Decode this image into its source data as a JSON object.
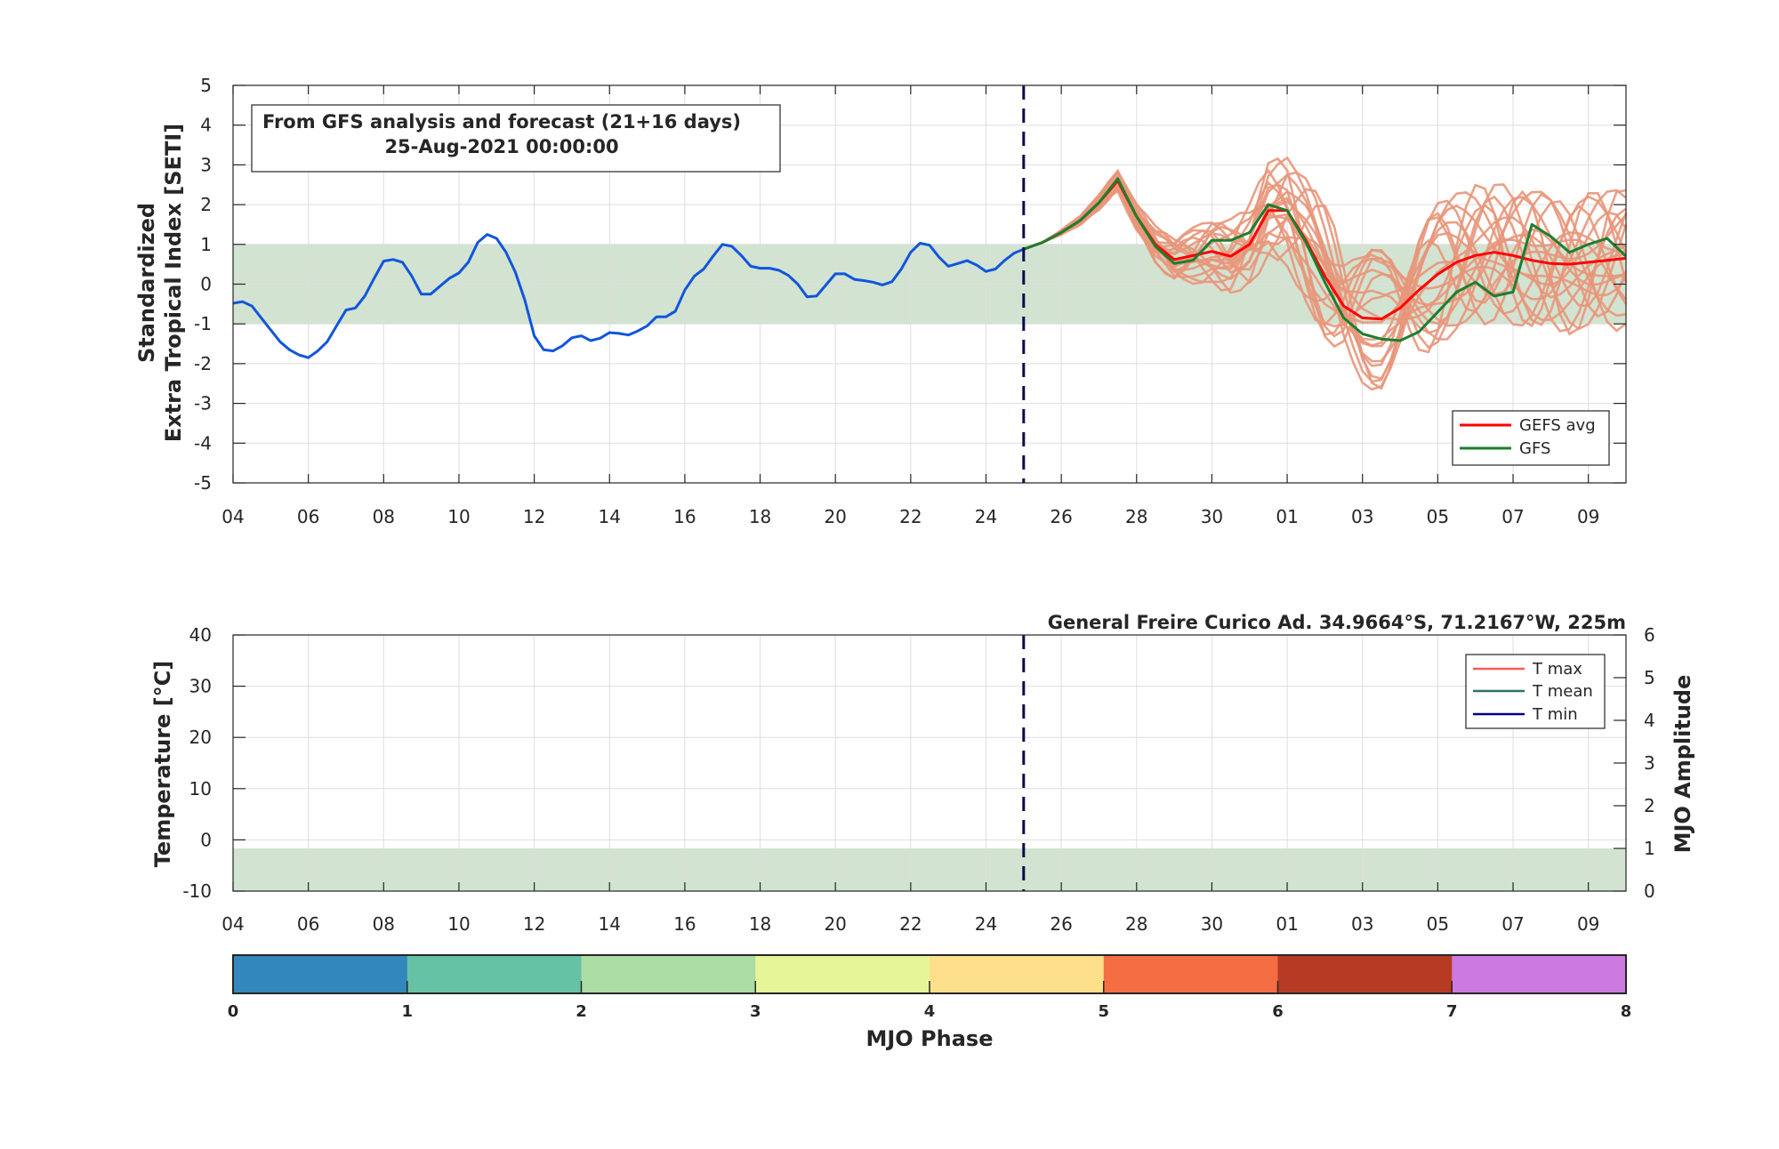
{
  "top_chart": {
    "ylabel_line1": "Standardized",
    "ylabel_line2": "Extra Tropical Index [SETI]",
    "info_line1": "From GFS analysis and forecast (21+16 days)",
    "info_line2": "25-Aug-2021 00:00:00",
    "legend": [
      {
        "label": "GEFS avg",
        "color": "#ff0000"
      },
      {
        "label": "GFS",
        "color": "#1a7f2e"
      }
    ]
  },
  "bottom_chart": {
    "title": "General Freire Curico Ad. 34.9664°S, 71.2167°W, 225m",
    "ylabel_left": "Temperature [°C]",
    "ylabel_right": "MJO Amplitude",
    "legend": [
      {
        "label": "T max",
        "color": "#ff5a5a"
      },
      {
        "label": "T mean",
        "color": "#2a6f6f"
      },
      {
        "label": "T min",
        "color": "#00007f"
      }
    ]
  },
  "colorbar": {
    "label": "MJO Phase",
    "ticks": [
      "0",
      "1",
      "2",
      "3",
      "4",
      "5",
      "6",
      "7",
      "8"
    ],
    "colors": [
      "#3288bd",
      "#66c2a5",
      "#abdda4",
      "#e6f598",
      "#fee08b",
      "#f46d43",
      "#b73b23",
      "#cc7adf"
    ]
  },
  "chart_data": [
    {
      "type": "line",
      "x_ticks": [
        "04",
        "06",
        "08",
        "10",
        "12",
        "14",
        "16",
        "18",
        "20",
        "22",
        "24",
        "26",
        "28",
        "30",
        "01",
        "03",
        "05",
        "07",
        "09"
      ],
      "y_ticks": [
        "-5",
        "-4",
        "-3",
        "-2",
        "-1",
        "0",
        "1",
        "2",
        "3",
        "4",
        "5"
      ],
      "ylim": [
        -5,
        5
      ],
      "xlim": [
        0,
        37
      ],
      "band": [
        -1,
        1
      ],
      "analysis_end_day": 21,
      "grid": true,
      "legend_position": "bottom-right",
      "series": [
        {
          "name": "",
          "color": "#1155dd",
          "x": [
            0,
            0.25,
            0.5,
            0.75,
            1,
            1.25,
            1.5,
            1.75,
            2,
            2.25,
            2.5,
            2.75,
            3,
            3.25,
            3.5,
            3.75,
            4,
            4.25,
            4.5,
            4.75,
            5,
            5.25,
            5.5,
            5.75,
            6,
            6.25,
            6.5,
            6.75,
            7,
            7.25,
            7.5,
            7.75,
            8,
            8.25,
            8.5,
            8.75,
            9,
            9.25,
            9.5,
            9.75,
            10,
            10.25,
            10.5,
            10.75,
            11,
            11.25,
            11.5,
            11.75,
            12,
            12.25,
            12.5,
            12.75,
            13,
            13.25,
            13.5,
            13.75,
            14,
            14.25,
            14.5,
            14.75,
            15,
            15.25,
            15.5,
            15.75,
            16,
            16.25,
            16.5,
            16.75,
            17,
            17.25,
            17.5,
            17.75,
            18,
            18.25,
            18.5,
            18.75,
            19,
            19.25,
            19.5,
            19.75,
            20,
            20.25,
            20.5,
            20.75,
            21
          ],
          "y": [
            -0.48,
            -0.44,
            -0.55,
            -0.85,
            -1.15,
            -1.45,
            -1.65,
            -1.78,
            -1.85,
            -1.68,
            -1.45,
            -1.05,
            -0.65,
            -0.6,
            -0.3,
            0.15,
            0.58,
            0.62,
            0.55,
            0.2,
            -0.25,
            -0.25,
            -0.05,
            0.15,
            0.28,
            0.55,
            1.05,
            1.25,
            1.15,
            0.8,
            0.3,
            -0.4,
            -1.3,
            -1.65,
            -1.68,
            -1.55,
            -1.35,
            -1.3,
            -1.42,
            -1.36,
            -1.22,
            -1.24,
            -1.28,
            -1.18,
            -1.05,
            -0.82,
            -0.82,
            -0.68,
            -0.15,
            0.2,
            0.38,
            0.7,
            1.0,
            0.95,
            0.72,
            0.45,
            0.4,
            0.4,
            0.35,
            0.22,
            0.0,
            -0.32,
            -0.3,
            -0.02,
            0.26,
            0.26,
            0.12,
            0.09,
            0.05,
            -0.02,
            0.06,
            0.38,
            0.8,
            1.03,
            0.98,
            0.68,
            0.45,
            0.52,
            0.59,
            0.48,
            0.32,
            0.38,
            0.6,
            0.78,
            0.88
          ]
        },
        {
          "name": "GEFS avg",
          "color": "#ff0000",
          "x": [
            21,
            21.5,
            22,
            22.5,
            23,
            23.5,
            24,
            24.5,
            25,
            25.5,
            26,
            26.5,
            27,
            27.5,
            28,
            28.5,
            29,
            29.5,
            30,
            30.5,
            31,
            31.5,
            32,
            32.5,
            33,
            33.5,
            34,
            34.5,
            35,
            35.5,
            36,
            36.5,
            37
          ],
          "y": [
            0.88,
            1.05,
            1.3,
            1.6,
            2.05,
            2.6,
            1.7,
            1.0,
            0.62,
            0.72,
            0.82,
            0.7,
            1.0,
            1.85,
            1.85,
            1.1,
            0.2,
            -0.55,
            -0.85,
            -0.88,
            -0.6,
            -0.15,
            0.25,
            0.55,
            0.72,
            0.8,
            0.72,
            0.6,
            0.52,
            0.5,
            0.55,
            0.6,
            0.65
          ]
        },
        {
          "name": "GFS",
          "color": "#1a7f2e",
          "x": [
            21,
            21.5,
            22,
            22.5,
            23,
            23.5,
            24,
            24.5,
            25,
            25.5,
            26,
            26.5,
            27,
            27.5,
            28,
            28.5,
            29,
            29.5,
            30,
            30.5,
            31,
            31.5,
            32,
            32.5,
            33,
            33.5,
            34,
            34.5,
            35,
            35.5,
            36,
            36.5,
            37
          ],
          "y": [
            0.88,
            1.05,
            1.3,
            1.6,
            2.05,
            2.65,
            1.7,
            0.95,
            0.52,
            0.6,
            1.1,
            1.1,
            1.3,
            2.0,
            1.85,
            1.05,
            0.05,
            -0.85,
            -1.25,
            -1.38,
            -1.42,
            -1.2,
            -0.7,
            -0.2,
            0.05,
            -0.3,
            -0.2,
            1.5,
            1.2,
            0.8,
            1.0,
            1.15,
            0.7
          ]
        }
      ]
    },
    {
      "type": "line",
      "x_ticks": [
        "04",
        "06",
        "08",
        "10",
        "12",
        "14",
        "16",
        "18",
        "20",
        "22",
        "24",
        "26",
        "28",
        "30",
        "01",
        "03",
        "05",
        "07",
        "09"
      ],
      "y_ticks_left": [
        "-10",
        "0",
        "10",
        "20",
        "30",
        "40"
      ],
      "y_ticks_right": [
        "0",
        "1",
        "2",
        "3",
        "4",
        "5",
        "6"
      ],
      "ylim_left": [
        -10,
        40
      ],
      "ylim_right": [
        0,
        6
      ],
      "band_right": [
        0,
        1
      ],
      "grid": true,
      "legend_position": "top-right",
      "series": []
    }
  ]
}
